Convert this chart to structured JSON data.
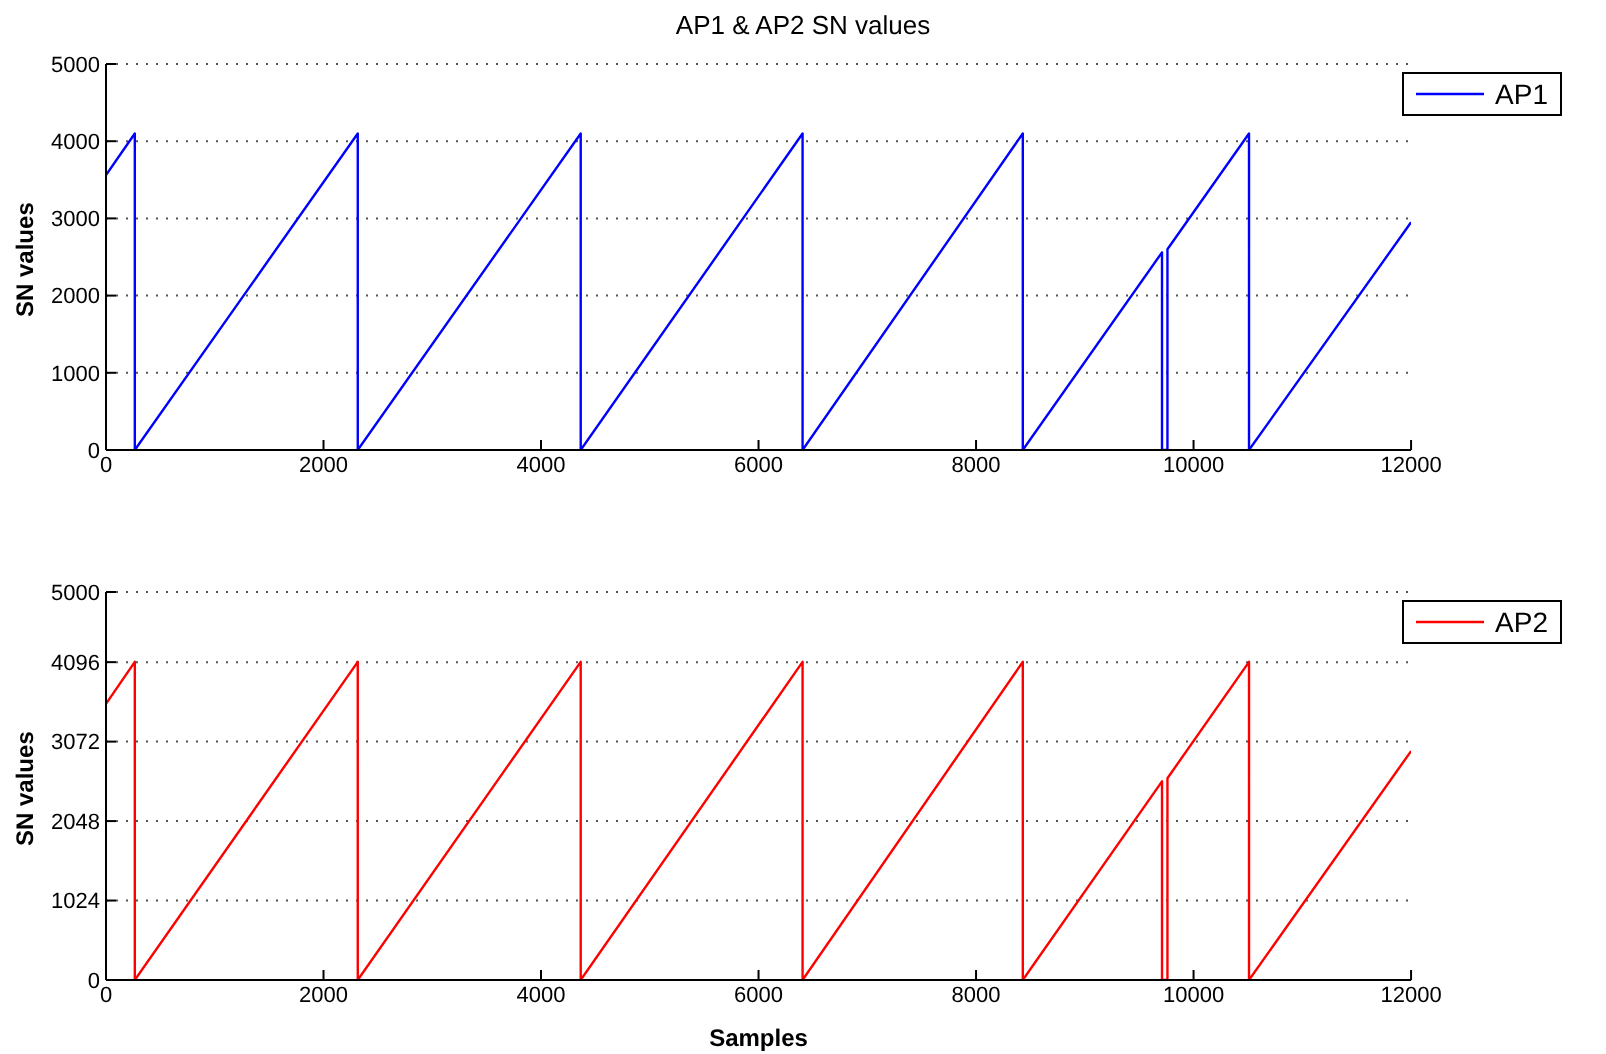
{
  "chart_data": [
    {
      "type": "line",
      "title": "AP1 & AP2 SN values",
      "ylabel": "SN values",
      "x": [
        0,
        265,
        265,
        2315,
        2315,
        4365,
        4365,
        6405,
        6405,
        8430,
        8430,
        9710,
        9710,
        9760,
        9760,
        10510,
        10510,
        12000
      ],
      "series": [
        {
          "name": "AP1",
          "color": "#0000ff",
          "values": [
            3560,
            4100,
            0,
            4100,
            0,
            4100,
            0,
            4100,
            0,
            4100,
            0,
            2560,
            0,
            0,
            2600,
            4100,
            0,
            2950
          ]
        }
      ],
      "xlim": [
        0,
        12000
      ],
      "xticks": [
        0,
        2000,
        4000,
        6000,
        8000,
        10000,
        12000
      ],
      "ylim": [
        0,
        5000
      ],
      "yticks": [
        0,
        1000,
        2000,
        3000,
        4000,
        5000
      ],
      "grid": "y",
      "legend": "top right",
      "marker": "none",
      "line_style": "solid"
    },
    {
      "type": "line",
      "xlabel": "Samples",
      "ylabel": "SN values",
      "x": [
        0,
        265,
        265,
        2315,
        2315,
        4365,
        4365,
        6405,
        6405,
        8430,
        8430,
        9710,
        9710,
        9760,
        9760,
        10510,
        10510,
        12000
      ],
      "series": [
        {
          "name": "AP2",
          "color": "#ff0000",
          "values": [
            3560,
            4100,
            0,
            4100,
            0,
            4100,
            0,
            4100,
            0,
            4100,
            0,
            2560,
            0,
            0,
            2600,
            4100,
            0,
            2950
          ]
        }
      ],
      "xlim": [
        0,
        12000
      ],
      "xticks": [
        0,
        2000,
        4000,
        6000,
        8000,
        10000,
        12000
      ],
      "ylim": [
        0,
        5000
      ],
      "yticks": [
        0,
        1024,
        2048,
        3072,
        4096,
        5000
      ],
      "grid": "y",
      "legend": "top right",
      "marker": "none",
      "line_style": "solid"
    }
  ]
}
